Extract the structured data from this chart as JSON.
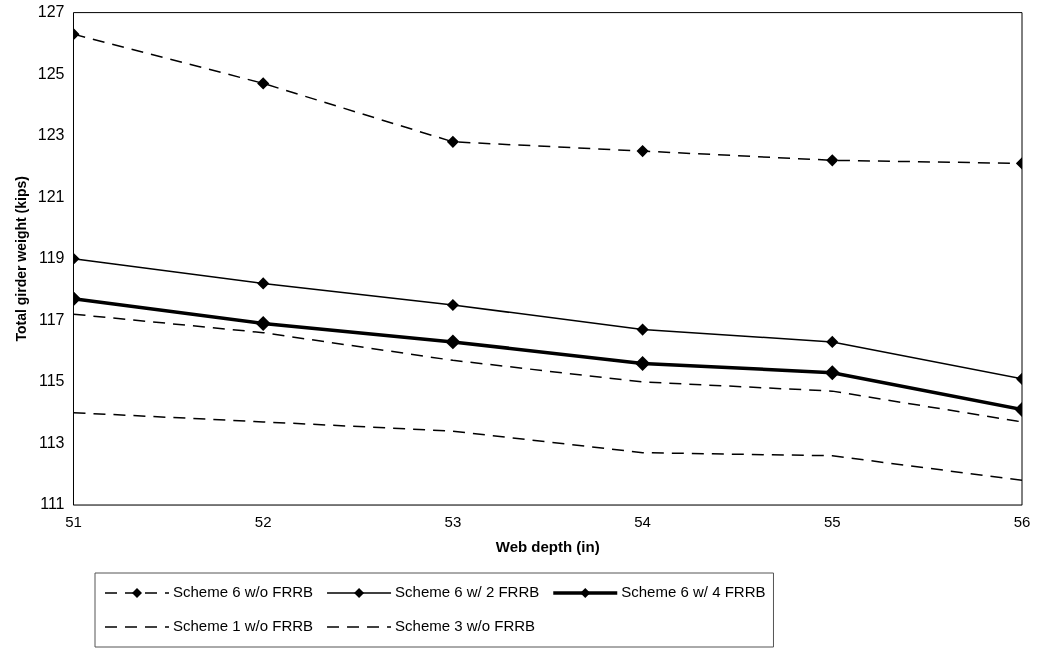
{
  "chart_data": {
    "type": "line",
    "xlabel": "Web depth (in)",
    "ylabel": "Total girder weight (kips)",
    "x": [
      51,
      52,
      53,
      54,
      55,
      56
    ],
    "xlim": [
      51,
      56
    ],
    "xticks": [
      51,
      52,
      53,
      54,
      55,
      56
    ],
    "ylim": [
      111,
      127
    ],
    "yticks": [
      111,
      113,
      115,
      117,
      119,
      121,
      123,
      125,
      127
    ],
    "grid": false,
    "legend": "bottom",
    "series": [
      {
        "name": "Scheme 6 w/o FRRB",
        "color": "#000000",
        "marker": "diamond",
        "line_style": "dashed",
        "values": [
          126.3,
          124.7,
          122.8,
          122.5,
          122.2,
          122.1
        ]
      },
      {
        "name": "Scheme 6 w/ 2 FRRB",
        "color": "#000000",
        "marker": "diamond",
        "line_style": "solid",
        "values": [
          119.0,
          118.2,
          117.5,
          116.7,
          116.3,
          115.1
        ]
      },
      {
        "name": "Scheme 6 w/ 4 FRRB",
        "color": "#000000",
        "marker": "diamond",
        "line_style": "solid",
        "values": [
          117.7,
          116.9,
          116.3,
          115.6,
          115.3,
          114.1
        ]
      },
      {
        "name": "Scheme 1 w/o FRRB",
        "color": "#000000",
        "marker": "none",
        "line_style": "dashed",
        "values": [
          117.2,
          116.6,
          115.7,
          115.0,
          114.7,
          113.7
        ]
      },
      {
        "name": "Scheme 3 w/o FRRB",
        "color": "#000000",
        "marker": "none",
        "line_style": "dashed",
        "values": [
          114.0,
          113.7,
          113.4,
          112.7,
          112.6,
          111.8
        ]
      }
    ]
  }
}
